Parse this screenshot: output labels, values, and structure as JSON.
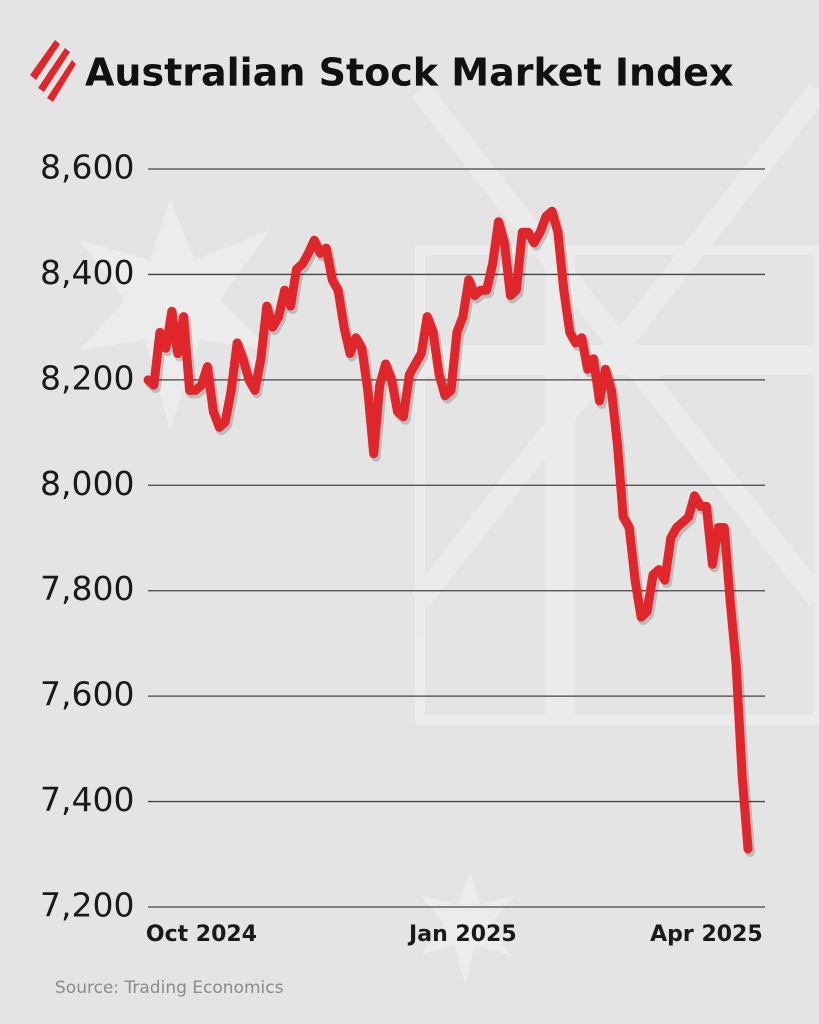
{
  "chart_data": {
    "type": "line",
    "title": "Australian Stock Market Index",
    "source": "Source: Trading Economics",
    "categories": [
      null,
      null,
      null,
      null,
      null,
      null,
      null,
      null,
      null,
      "Oct 2024",
      null,
      null,
      null,
      null,
      null,
      null,
      null,
      null,
      null,
      null,
      null,
      null,
      null,
      null,
      null,
      null,
      null,
      null,
      null,
      null,
      null,
      null,
      null,
      null,
      null,
      null,
      null,
      null,
      null,
      null,
      null,
      null,
      null,
      null,
      null,
      null,
      null,
      null,
      null,
      null,
      null,
      null,
      null,
      "Jan 2025",
      null,
      null,
      null,
      null,
      null,
      null,
      null,
      null,
      null,
      null,
      null,
      null,
      null,
      null,
      null,
      null,
      null,
      null,
      null,
      null,
      null,
      null,
      null,
      null,
      null,
      null,
      null,
      null,
      null,
      null,
      null,
      null,
      null,
      null,
      null,
      null,
      null,
      null,
      null,
      null,
      "Apr 2025",
      null,
      null,
      null,
      null,
      null,
      null,
      null
    ],
    "values": [
      8200,
      8190,
      8290,
      8260,
      8330,
      8250,
      8320,
      8180,
      8180,
      8190,
      8225,
      8140,
      8110,
      8120,
      8180,
      8270,
      8240,
      8200,
      8180,
      8240,
      8340,
      8300,
      8320,
      8370,
      8340,
      8410,
      8420,
      8440,
      8465,
      8440,
      8450,
      8390,
      8370,
      8300,
      8250,
      8280,
      8260,
      8180,
      8060,
      8190,
      8230,
      8200,
      8140,
      8130,
      8210,
      8230,
      8250,
      8320,
      8290,
      8210,
      8170,
      8180,
      8290,
      8320,
      8390,
      8360,
      8370,
      8370,
      8420,
      8500,
      8460,
      8360,
      8370,
      8480,
      8480,
      8460,
      8480,
      8510,
      8520,
      8480,
      8370,
      8290,
      8270,
      8280,
      8220,
      8240,
      8160,
      8220,
      8180,
      8080,
      7940,
      7920,
      7820,
      7750,
      7760,
      7830,
      7840,
      7820,
      7900,
      7920,
      7930,
      7940,
      7980,
      7960,
      7960,
      7850,
      7920,
      7920,
      7780,
      7660,
      7450,
      7310
    ],
    "color": "#e0262a",
    "ylim": [
      7200,
      8600
    ],
    "yticks": [
      {
        "value": 7200,
        "label": "7,200"
      },
      {
        "value": 7400,
        "label": "7,400"
      },
      {
        "value": 7600,
        "label": "7,600"
      },
      {
        "value": 7800,
        "label": "7,800"
      },
      {
        "value": 8000,
        "label": "8,000"
      },
      {
        "value": 8200,
        "label": "8,200"
      },
      {
        "value": 8400,
        "label": "8,400"
      },
      {
        "value": 8600,
        "label": "8,600"
      }
    ],
    "grid": true
  }
}
